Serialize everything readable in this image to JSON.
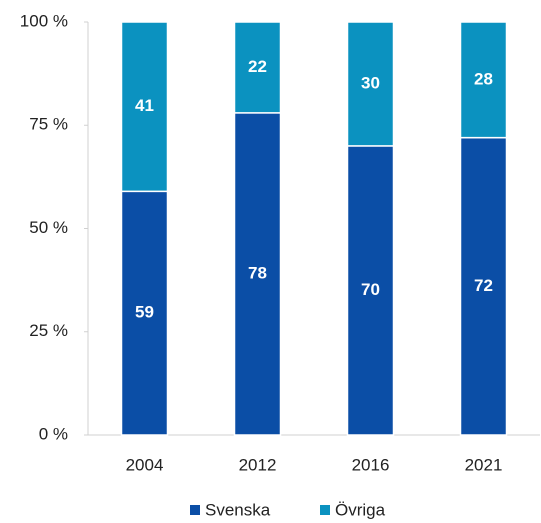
{
  "chart_data": {
    "type": "stacked_bar",
    "categories": [
      "2004",
      "2012",
      "2016",
      "2021"
    ],
    "series": [
      {
        "name": "Svenska",
        "color": "#0b4ea6",
        "values": [
          59,
          78,
          70,
          72
        ]
      },
      {
        "name": "Övriga",
        "color": "#0b92c0",
        "values": [
          41,
          22,
          30,
          28
        ]
      }
    ],
    "ylim": [
      0,
      100
    ],
    "yticks": [
      {
        "value": 0,
        "label": "0 %"
      },
      {
        "value": 25,
        "label": "25 %"
      },
      {
        "value": 50,
        "label": "50 %"
      },
      {
        "value": 75,
        "label": "75 %"
      },
      {
        "value": 100,
        "label": "100 %"
      }
    ],
    "grid": false,
    "legend": "bottom"
  }
}
